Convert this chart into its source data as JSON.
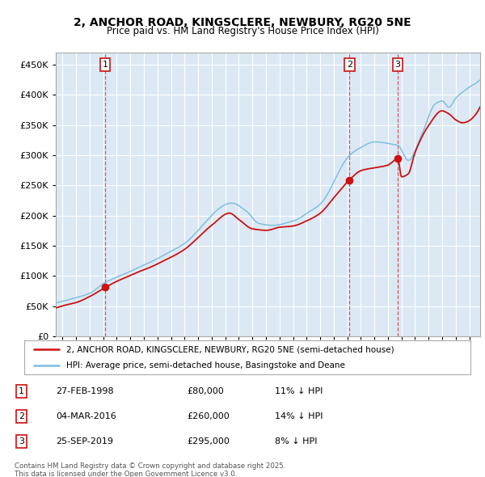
{
  "title1": "2, ANCHOR ROAD, KINGSCLERE, NEWBURY, RG20 5NE",
  "title2": "Price paid vs. HM Land Registry's House Price Index (HPI)",
  "plot_bg_color": "#dce9f5",
  "grid_color": "#ffffff",
  "red_line_label": "2, ANCHOR ROAD, KINGSCLERE, NEWBURY, RG20 5NE (semi-detached house)",
  "blue_line_label": "HPI: Average price, semi-detached house, Basingstoke and Deane",
  "transactions": [
    {
      "num": 1,
      "date": "27-FEB-1998",
      "price": 80000,
      "pct": "11% ↓ HPI",
      "year": 1998.15
    },
    {
      "num": 2,
      "date": "04-MAR-2016",
      "price": 260000,
      "pct": "14% ↓ HPI",
      "year": 2016.17
    },
    {
      "num": 3,
      "date": "25-SEP-2019",
      "price": 295000,
      "pct": "8% ↓ HPI",
      "year": 2019.73
    }
  ],
  "footnote1": "Contains HM Land Registry data © Crown copyright and database right 2025.",
  "footnote2": "This data is licensed under the Open Government Licence v3.0.",
  "ylim": [
    0,
    470000
  ],
  "yticks": [
    0,
    50000,
    100000,
    150000,
    200000,
    250000,
    300000,
    350000,
    400000,
    450000
  ],
  "xlim_start": 1994.5,
  "xlim_end": 2025.8
}
